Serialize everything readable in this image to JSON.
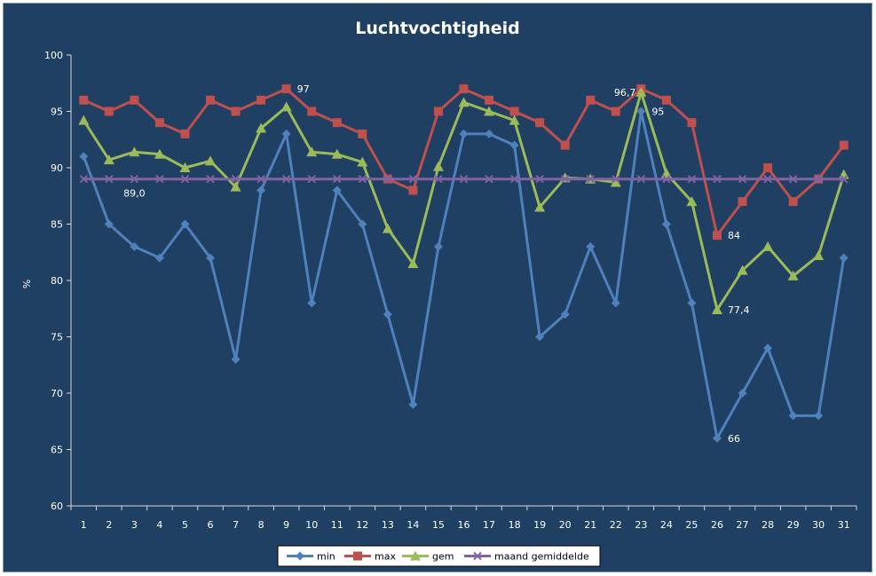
{
  "chart_data": {
    "type": "line",
    "title": "Luchtvochtigheid",
    "xlabel": "",
    "ylabel": "%",
    "ylim": [
      60,
      100
    ],
    "yticks": [
      60,
      65,
      70,
      75,
      80,
      85,
      90,
      95,
      100
    ],
    "categories": [
      "1",
      "2",
      "3",
      "4",
      "5",
      "6",
      "7",
      "8",
      "9",
      "10",
      "11",
      "12",
      "13",
      "14",
      "15",
      "16",
      "17",
      "18",
      "19",
      "20",
      "21",
      "22",
      "23",
      "24",
      "25",
      "26",
      "27",
      "28",
      "29",
      "30",
      "31"
    ],
    "grid": false,
    "legend_position": "bottom",
    "series": [
      {
        "name": "min",
        "color": "#4f81bd",
        "marker": "diamond",
        "values": [
          91,
          85,
          83,
          82,
          85,
          82,
          73,
          88,
          93,
          78,
          88,
          85,
          77,
          69,
          83,
          93,
          93,
          92,
          75,
          77,
          83,
          78,
          95,
          85,
          78,
          66,
          70,
          74,
          68,
          68,
          82
        ]
      },
      {
        "name": "max",
        "color": "#c0504d",
        "marker": "square",
        "values": [
          96,
          95,
          96,
          94,
          93,
          96,
          95,
          96,
          97,
          95,
          94,
          93,
          89,
          88,
          95,
          97,
          96,
          95,
          94,
          92,
          96,
          95,
          97,
          96,
          94,
          84,
          87,
          90,
          87,
          89,
          92
        ]
      },
      {
        "name": "gem",
        "color": "#9bbb59",
        "marker": "triangle",
        "values": [
          94.2,
          90.7,
          91.4,
          91.2,
          90.0,
          90.6,
          88.3,
          93.5,
          95.4,
          91.4,
          91.2,
          90.5,
          84.6,
          81.5,
          90.1,
          95.8,
          95.0,
          94.2,
          86.5,
          89.1,
          89.0,
          88.7,
          96.7,
          89.5,
          87.0,
          77.4,
          80.9,
          83.0,
          80.4,
          82.2,
          89.4
        ]
      },
      {
        "name": "maand gemiddelde",
        "color": "#8064a2",
        "marker": "x",
        "values": [
          89,
          89,
          89,
          89,
          89,
          89,
          89,
          89,
          89,
          89,
          89,
          89,
          89,
          89,
          89,
          89,
          89,
          89,
          89,
          89,
          89,
          89,
          89,
          89,
          89,
          89,
          89,
          89,
          89,
          89,
          89
        ]
      }
    ],
    "annotations": [
      {
        "series": "max",
        "index": 8,
        "text": "97",
        "anchor": "right"
      },
      {
        "series": "maand gemiddelde",
        "index": 2,
        "text": "89,0",
        "anchor": "below"
      },
      {
        "series": "gem",
        "index": 22,
        "text": "96,7",
        "anchor": "left-above"
      },
      {
        "series": "min",
        "index": 22,
        "text": "95",
        "anchor": "right"
      },
      {
        "series": "max",
        "index": 25,
        "text": "84",
        "anchor": "right"
      },
      {
        "series": "gem",
        "index": 25,
        "text": "77,4",
        "anchor": "right"
      },
      {
        "series": "min",
        "index": 25,
        "text": "66",
        "anchor": "right"
      }
    ]
  }
}
